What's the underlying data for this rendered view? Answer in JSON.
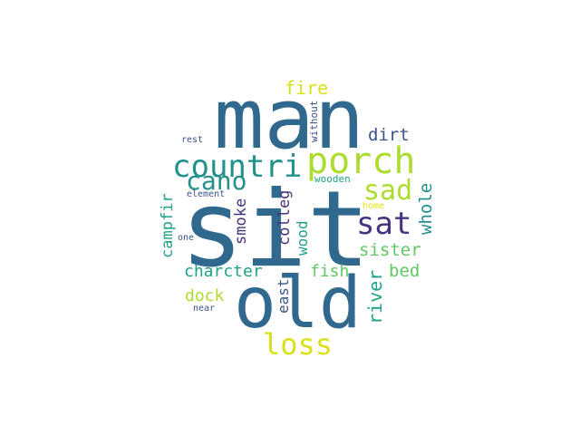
{
  "word_cloud": {
    "colors": {
      "background": "#ffffff",
      "dark_blue": "#31688e",
      "indigo": "#46327e",
      "blue_grey": "#3b528b",
      "teal": "#21918c",
      "green_teal": "#1fa187",
      "green": "#5ec962",
      "yellow_green": "#addc30",
      "yellow": "#d8e219",
      "bright_yellow": "#e5e419"
    },
    "words": [
      {
        "text": "man"
      },
      {
        "text": "sit"
      },
      {
        "text": "old"
      },
      {
        "text": "porch"
      },
      {
        "text": "countri"
      },
      {
        "text": "loss"
      },
      {
        "text": "sat"
      },
      {
        "text": "sad"
      },
      {
        "text": "cano"
      },
      {
        "text": "fire"
      },
      {
        "text": "dirt"
      },
      {
        "text": "whole"
      },
      {
        "text": "sister"
      },
      {
        "text": "river"
      },
      {
        "text": "bed"
      },
      {
        "text": "fish"
      },
      {
        "text": "charcter"
      },
      {
        "text": "dock"
      },
      {
        "text": "east"
      },
      {
        "text": "wood"
      },
      {
        "text": "colleg"
      },
      {
        "text": "smoke"
      },
      {
        "text": "campfir"
      },
      {
        "text": "wooden"
      },
      {
        "text": "without"
      },
      {
        "text": "rest"
      },
      {
        "text": "element"
      },
      {
        "text": "home"
      },
      {
        "text": "one"
      },
      {
        "text": "near"
      }
    ]
  }
}
